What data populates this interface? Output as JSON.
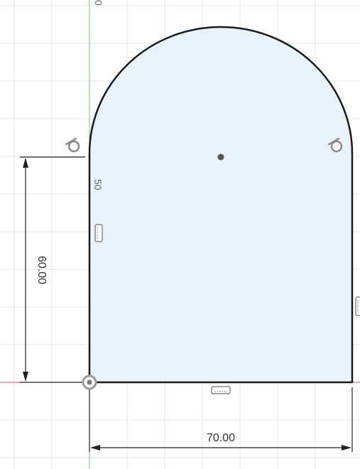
{
  "sketch": {
    "fill_color": "#e8f2fb",
    "stroke_color": "#1a1a1a",
    "grid_color": "#e6e6e6",
    "axis_x_color": "#e05050",
    "axis_y_color": "#66cc66",
    "dimension_color": "#222222",
    "constraint_icon_color": "#8a8a8a"
  },
  "dimensions": {
    "horizontal_width": "70.00",
    "vertical_height": "60.00",
    "arc_marker_value": "50"
  },
  "axis": {
    "top_marker": "0"
  },
  "icons": [
    "tangent-constraint-icon",
    "horizontal-constraint-icon",
    "vertical-constraint-icon",
    "coincident-origin-icon",
    "arc-center-point"
  ]
}
